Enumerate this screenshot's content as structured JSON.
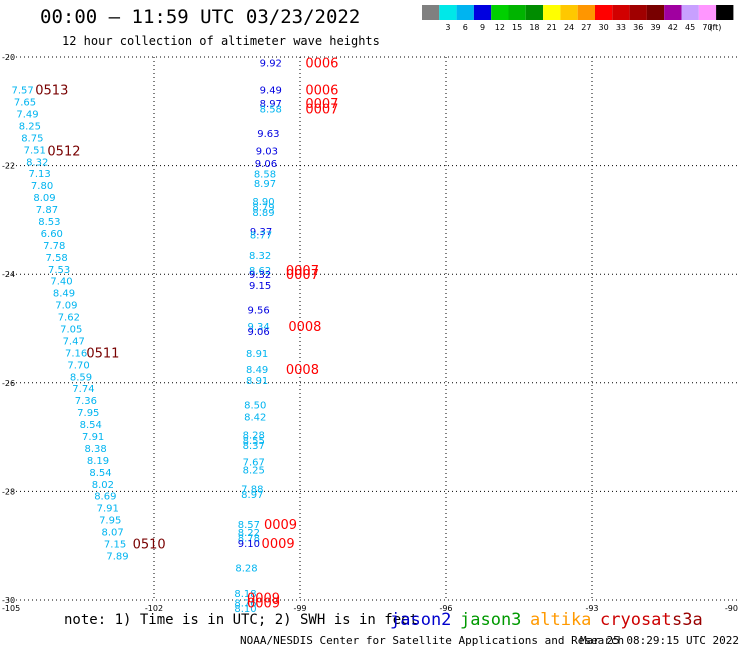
{
  "header": {
    "title": "00:00 — 11:59 UTC 03/23/2022",
    "subtitle": "12 hour collection of altimeter wave heights"
  },
  "footer": {
    "note": "note: 1) Time is in UTC; 2) SWH is in feet",
    "credit": "NOAA/NESDIS Center for Satellite Applications and Research",
    "timestamp": "Mar 25 08:29:15 UTC 2022",
    "satellites": [
      {
        "name": "jason2",
        "color": "#0000cc"
      },
      {
        "name": "jason3",
        "color": "#009900"
      },
      {
        "name": "altika",
        "color": "#ff9900"
      },
      {
        "name": "cryosat",
        "color": "#cc0000"
      },
      {
        "name": "s3a",
        "color": "#990000"
      }
    ]
  },
  "chart_data": {
    "type": "scatter",
    "title": "00:00 — 11:59 UTC 03/23/2022",
    "subtitle": "12 hour collection of altimeter wave heights",
    "xlabel": "",
    "ylabel": "",
    "xlim": [
      -105,
      -90
    ],
    "ylim": [
      -30,
      -20
    ],
    "xticks": [
      -105,
      -102,
      -99,
      -96,
      -93,
      -90
    ],
    "yticks": [
      -20,
      -22,
      -24,
      -26,
      -28,
      -30
    ],
    "grid": true,
    "color_scale": {
      "unit": "(ft)",
      "bins": [
        {
          "label": "",
          "color": "#808080"
        },
        {
          "label": "3",
          "color": "#00e8e8"
        },
        {
          "label": "6",
          "color": "#00b4f0"
        },
        {
          "label": "9",
          "color": "#0000e0"
        },
        {
          "label": "12",
          "color": "#00d000"
        },
        {
          "label": "15",
          "color": "#00b400"
        },
        {
          "label": "18",
          "color": "#008c00"
        },
        {
          "label": "21",
          "color": "#ffff00"
        },
        {
          "label": "24",
          "color": "#ffc800"
        },
        {
          "label": "27",
          "color": "#ff9600"
        },
        {
          "label": "30",
          "color": "#ff0000"
        },
        {
          "label": "33",
          "color": "#d20000"
        },
        {
          "label": "36",
          "color": "#a00000"
        },
        {
          "label": "39",
          "color": "#780000"
        },
        {
          "label": "42",
          "color": "#a000a0"
        },
        {
          "label": "45",
          "color": "#c8a0ff"
        },
        {
          "label": "70",
          "color": "#ff96ff"
        },
        {
          "label": "",
          "color": "#000000"
        }
      ]
    },
    "series": [
      {
        "name": "track-1",
        "points": [
          {
            "x": -104.7,
            "y": -20.6,
            "v": "7.57",
            "color": "#00b4f0"
          },
          {
            "x": -104.65,
            "y": -20.82,
            "v": "7.65",
            "color": "#00b4f0"
          },
          {
            "x": -104.6,
            "y": -21.04,
            "v": "7.49",
            "color": "#00b4f0"
          },
          {
            "x": -104.55,
            "y": -21.26,
            "v": "8.25",
            "color": "#00b4f0"
          },
          {
            "x": -104.5,
            "y": -21.48,
            "v": "8.75",
            "color": "#00b4f0"
          },
          {
            "x": -104.45,
            "y": -21.7,
            "v": "7.51",
            "color": "#00b4f0"
          },
          {
            "x": -104.4,
            "y": -21.92,
            "v": "8.32",
            "color": "#00b4f0"
          },
          {
            "x": -104.35,
            "y": -22.14,
            "v": "7.13",
            "color": "#00b4f0"
          },
          {
            "x": -104.3,
            "y": -22.36,
            "v": "7.80",
            "color": "#00b4f0"
          },
          {
            "x": -104.25,
            "y": -22.58,
            "v": "8.09",
            "color": "#00b4f0"
          },
          {
            "x": -104.2,
            "y": -22.8,
            "v": "7.87",
            "color": "#00b4f0"
          },
          {
            "x": -104.15,
            "y": -23.02,
            "v": "8.53",
            "color": "#00b4f0"
          },
          {
            "x": -104.1,
            "y": -23.24,
            "v": "6.60",
            "color": "#00b4f0"
          },
          {
            "x": -104.05,
            "y": -23.46,
            "v": "7.78",
            "color": "#00b4f0"
          },
          {
            "x": -104.0,
            "y": -23.68,
            "v": "7.58",
            "color": "#00b4f0"
          },
          {
            "x": -103.95,
            "y": -23.9,
            "v": "7.53",
            "color": "#00b4f0"
          },
          {
            "x": -103.9,
            "y": -24.12,
            "v": "7.40",
            "color": "#00b4f0"
          },
          {
            "x": -103.85,
            "y": -24.34,
            "v": "8.49",
            "color": "#00b4f0"
          },
          {
            "x": -103.8,
            "y": -24.56,
            "v": "7.09",
            "color": "#00b4f0"
          },
          {
            "x": -103.75,
            "y": -24.78,
            "v": "7.62",
            "color": "#00b4f0"
          },
          {
            "x": -103.7,
            "y": -25.0,
            "v": "7.05",
            "color": "#00b4f0"
          },
          {
            "x": -103.65,
            "y": -25.22,
            "v": "7.47",
            "color": "#00b4f0"
          },
          {
            "x": -103.6,
            "y": -25.44,
            "v": "7.16",
            "color": "#00b4f0"
          },
          {
            "x": -103.55,
            "y": -25.66,
            "v": "7.70",
            "color": "#00b4f0"
          },
          {
            "x": -103.5,
            "y": -25.88,
            "v": "8.59",
            "color": "#00b4f0"
          },
          {
            "x": -103.45,
            "y": -26.1,
            "v": "7.74",
            "color": "#00b4f0"
          },
          {
            "x": -103.4,
            "y": -26.32,
            "v": "7.36",
            "color": "#00b4f0"
          },
          {
            "x": -103.35,
            "y": -26.54,
            "v": "7.95",
            "color": "#00b4f0"
          },
          {
            "x": -103.3,
            "y": -26.76,
            "v": "8.54",
            "color": "#00b4f0"
          },
          {
            "x": -103.25,
            "y": -26.98,
            "v": "7.91",
            "color": "#00b4f0"
          },
          {
            "x": -103.2,
            "y": -27.2,
            "v": "8.38",
            "color": "#00b4f0"
          },
          {
            "x": -103.15,
            "y": -27.42,
            "v": "8.19",
            "color": "#00b4f0"
          },
          {
            "x": -103.1,
            "y": -27.64,
            "v": "8.54",
            "color": "#00b4f0"
          },
          {
            "x": -103.05,
            "y": -27.86,
            "v": "8.02",
            "color": "#00b4f0"
          },
          {
            "x": -103.0,
            "y": -28.08,
            "v": "8.69",
            "color": "#00b4f0"
          },
          {
            "x": -102.95,
            "y": -28.3,
            "v": "7.91",
            "color": "#00b4f0"
          },
          {
            "x": -102.9,
            "y": -28.52,
            "v": "7.95",
            "color": "#00b4f0"
          },
          {
            "x": -102.85,
            "y": -28.74,
            "v": "8.07",
            "color": "#00b4f0"
          },
          {
            "x": -102.8,
            "y": -28.96,
            "v": "7.15",
            "color": "#00b4f0"
          },
          {
            "x": -102.75,
            "y": -29.18,
            "v": "7.89",
            "color": "#00b4f0"
          }
        ]
      },
      {
        "name": "track-2",
        "points": [
          {
            "x": -99.6,
            "y": -20.1,
            "v": "9.92",
            "color": "#0000e0"
          },
          {
            "x": -99.6,
            "y": -20.6,
            "v": "9.49",
            "color": "#0000e0"
          },
          {
            "x": -99.6,
            "y": -20.85,
            "v": "8.97",
            "color": "#0000e0"
          },
          {
            "x": -99.6,
            "y": -20.95,
            "v": "8.58",
            "color": "#00b4f0"
          },
          {
            "x": -99.65,
            "y": -21.4,
            "v": "9.63",
            "color": "#0000e0"
          },
          {
            "x": -99.68,
            "y": -21.72,
            "v": "9.03",
            "color": "#0000e0"
          },
          {
            "x": -99.7,
            "y": -21.95,
            "v": "9.06",
            "color": "#0000e0"
          },
          {
            "x": -99.72,
            "y": -22.15,
            "v": "8.58",
            "color": "#00b4f0"
          },
          {
            "x": -99.72,
            "y": -22.32,
            "v": "8.97",
            "color": "#00b4f0"
          },
          {
            "x": -99.75,
            "y": -22.65,
            "v": "8.90",
            "color": "#00b4f0"
          },
          {
            "x": -99.75,
            "y": -22.75,
            "v": "8.79",
            "color": "#00b4f0"
          },
          {
            "x": -99.75,
            "y": -22.85,
            "v": "8.89",
            "color": "#00b4f0"
          },
          {
            "x": -99.8,
            "y": -23.2,
            "v": "9.37",
            "color": "#0000e0"
          },
          {
            "x": -99.8,
            "y": -23.27,
            "v": "8.77",
            "color": "#00b4f0"
          },
          {
            "x": -99.82,
            "y": -23.65,
            "v": "8.32",
            "color": "#00b4f0"
          },
          {
            "x": -99.82,
            "y": -23.92,
            "v": "8.62",
            "color": "#00b4f0"
          },
          {
            "x": -99.82,
            "y": -24.0,
            "v": "9.32",
            "color": "#0000e0"
          },
          {
            "x": -99.82,
            "y": -24.2,
            "v": "9.15",
            "color": "#0000e0"
          },
          {
            "x": -99.85,
            "y": -24.65,
            "v": "9.56",
            "color": "#0000e0"
          },
          {
            "x": -99.85,
            "y": -24.95,
            "v": "9.34",
            "color": "#00b4f0"
          },
          {
            "x": -99.85,
            "y": -25.05,
            "v": "9.06",
            "color": "#0000e0"
          },
          {
            "x": -99.88,
            "y": -25.45,
            "v": "8.91",
            "color": "#00b4f0"
          },
          {
            "x": -99.88,
            "y": -25.75,
            "v": "8.49",
            "color": "#00b4f0"
          },
          {
            "x": -99.88,
            "y": -25.95,
            "v": "8.91",
            "color": "#00b4f0"
          },
          {
            "x": -99.92,
            "y": -26.4,
            "v": "8.50",
            "color": "#00b4f0"
          },
          {
            "x": -99.92,
            "y": -26.62,
            "v": "8.42",
            "color": "#00b4f0"
          },
          {
            "x": -99.95,
            "y": -26.95,
            "v": "8.28",
            "color": "#00b4f0"
          },
          {
            "x": -99.95,
            "y": -27.05,
            "v": "8.55",
            "color": "#00b4f0"
          },
          {
            "x": -99.95,
            "y": -27.15,
            "v": "8.37",
            "color": "#00b4f0"
          },
          {
            "x": -99.95,
            "y": -27.45,
            "v": "7.67",
            "color": "#00b4f0"
          },
          {
            "x": -99.95,
            "y": -27.6,
            "v": "8.25",
            "color": "#00b4f0"
          },
          {
            "x": -99.98,
            "y": -27.95,
            "v": "7.88",
            "color": "#00b4f0"
          },
          {
            "x": -99.98,
            "y": -28.05,
            "v": "8.97",
            "color": "#00b4f0"
          },
          {
            "x": -100.05,
            "y": -28.6,
            "v": "8.57",
            "color": "#00b4f0"
          },
          {
            "x": -100.05,
            "y": -28.75,
            "v": "8.22",
            "color": "#00b4f0"
          },
          {
            "x": -100.05,
            "y": -28.85,
            "v": "8.78",
            "color": "#00b4f0"
          },
          {
            "x": -100.05,
            "y": -28.95,
            "v": "9.10",
            "color": "#0000e0"
          },
          {
            "x": -100.1,
            "y": -29.4,
            "v": "8.28",
            "color": "#00b4f0"
          },
          {
            "x": -100.12,
            "y": -29.87,
            "v": "8.18",
            "color": "#00b4f0"
          },
          {
            "x": -100.12,
            "y": -30.05,
            "v": "8.76",
            "color": "#00b4f0"
          },
          {
            "x": -100.12,
            "y": -30.15,
            "v": "8.10",
            "color": "#00b4f0"
          }
        ]
      }
    ],
    "annotations": [
      {
        "x": -104.1,
        "y": -20.6,
        "text": "0513",
        "color": "#780000"
      },
      {
        "x": -103.85,
        "y": -21.72,
        "text": "0512",
        "color": "#780000"
      },
      {
        "x": -103.05,
        "y": -25.44,
        "text": "0511",
        "color": "#780000"
      },
      {
        "x": -102.1,
        "y": -28.96,
        "text": "0510",
        "color": "#780000"
      },
      {
        "x": -98.55,
        "y": -20.1,
        "text": "0006",
        "color": "#ff0000"
      },
      {
        "x": -98.55,
        "y": -20.6,
        "text": "0006",
        "color": "#ff0000"
      },
      {
        "x": -98.55,
        "y": -20.85,
        "text": "0007",
        "color": "#ff0000"
      },
      {
        "x": -98.55,
        "y": -20.95,
        "text": "0007",
        "color": "#ff0000"
      },
      {
        "x": -98.95,
        "y": -23.92,
        "text": "0007",
        "color": "#ff0000"
      },
      {
        "x": -98.95,
        "y": -24.0,
        "text": "0007",
        "color": "#ff0000"
      },
      {
        "x": -98.9,
        "y": -24.95,
        "text": "0008",
        "color": "#ff0000"
      },
      {
        "x": -98.95,
        "y": -25.75,
        "text": "0008",
        "color": "#ff0000"
      },
      {
        "x": -99.4,
        "y": -28.6,
        "text": "0009",
        "color": "#ff0000"
      },
      {
        "x": -99.45,
        "y": -28.95,
        "text": "0009",
        "color": "#ff0000"
      },
      {
        "x": -99.75,
        "y": -29.95,
        "text": "0009",
        "color": "#ff0000"
      },
      {
        "x": -99.75,
        "y": -30.05,
        "text": "0009",
        "color": "#ff0000"
      }
    ]
  }
}
